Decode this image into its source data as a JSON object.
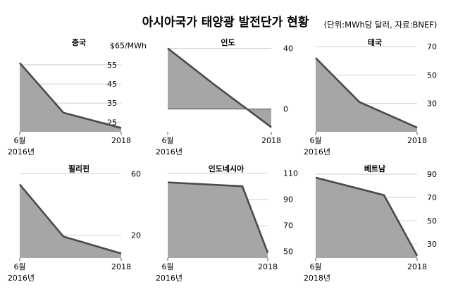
{
  "title": "아시아국가 태양광 발전단가 현황",
  "source": "(단위:MWh당 달러, 자료:BNEF)",
  "chart_data": [
    {
      "type": "area",
      "title": "중국",
      "x_labels": [
        "6월",
        "2018"
      ],
      "year_label": "2016년",
      "points": [
        56,
        30,
        22
      ],
      "ylim": [
        20,
        66
      ],
      "yticks": [
        25,
        35,
        45,
        55
      ],
      "ytick_labels": [
        "25",
        "35",
        "45",
        "55",
        "$65/MWh"
      ],
      "top_label_value": 65,
      "baseline": 20
    },
    {
      "type": "area",
      "title": "인도",
      "x_labels": [
        "6월",
        "2018"
      ],
      "year_label": "2016년",
      "points": [
        40,
        17,
        -12
      ],
      "ylim": [
        -15,
        43
      ],
      "yticks": [
        0,
        40
      ],
      "ytick_labels": [
        "0",
        "40"
      ],
      "baseline": 0
    },
    {
      "type": "area",
      "title": "태국",
      "x_labels": [
        "6월",
        "2018"
      ],
      "year_label": "2016년",
      "points": [
        62,
        31,
        13
      ],
      "ylim": [
        10,
        72
      ],
      "yticks": [
        30,
        50,
        70
      ],
      "ytick_labels": [
        "30",
        "50",
        "70"
      ],
      "baseline": 10
    },
    {
      "type": "area",
      "title": "필리핀",
      "x_labels": [
        "6월",
        "2018"
      ],
      "year_label": "2016년",
      "points": [
        53,
        19,
        8
      ],
      "ylim": [
        5,
        62
      ],
      "yticks": [
        20,
        60
      ],
      "ytick_labels": [
        "20",
        "60"
      ],
      "baseline": 5
    },
    {
      "type": "area",
      "title": "인도네시아",
      "x_labels": [
        "6월",
        "2018"
      ],
      "year_label": "2016년",
      "points": [
        103,
        100,
        49
      ],
      "ylim": [
        45,
        112
      ],
      "yticks": [
        50,
        70,
        90,
        110
      ],
      "ytick_labels": [
        "50",
        "70",
        "90",
        "110"
      ],
      "baseline": 45
    },
    {
      "type": "area",
      "title": "베트남",
      "x_labels": [
        "6월",
        "2018"
      ],
      "year_label": "2018년",
      "points": [
        87,
        72,
        20
      ],
      "ylim": [
        18,
        93
      ],
      "yticks": [
        30,
        50,
        70,
        90
      ],
      "ytick_labels": [
        "30",
        "50",
        "70",
        "90"
      ],
      "baseline": 18
    }
  ]
}
